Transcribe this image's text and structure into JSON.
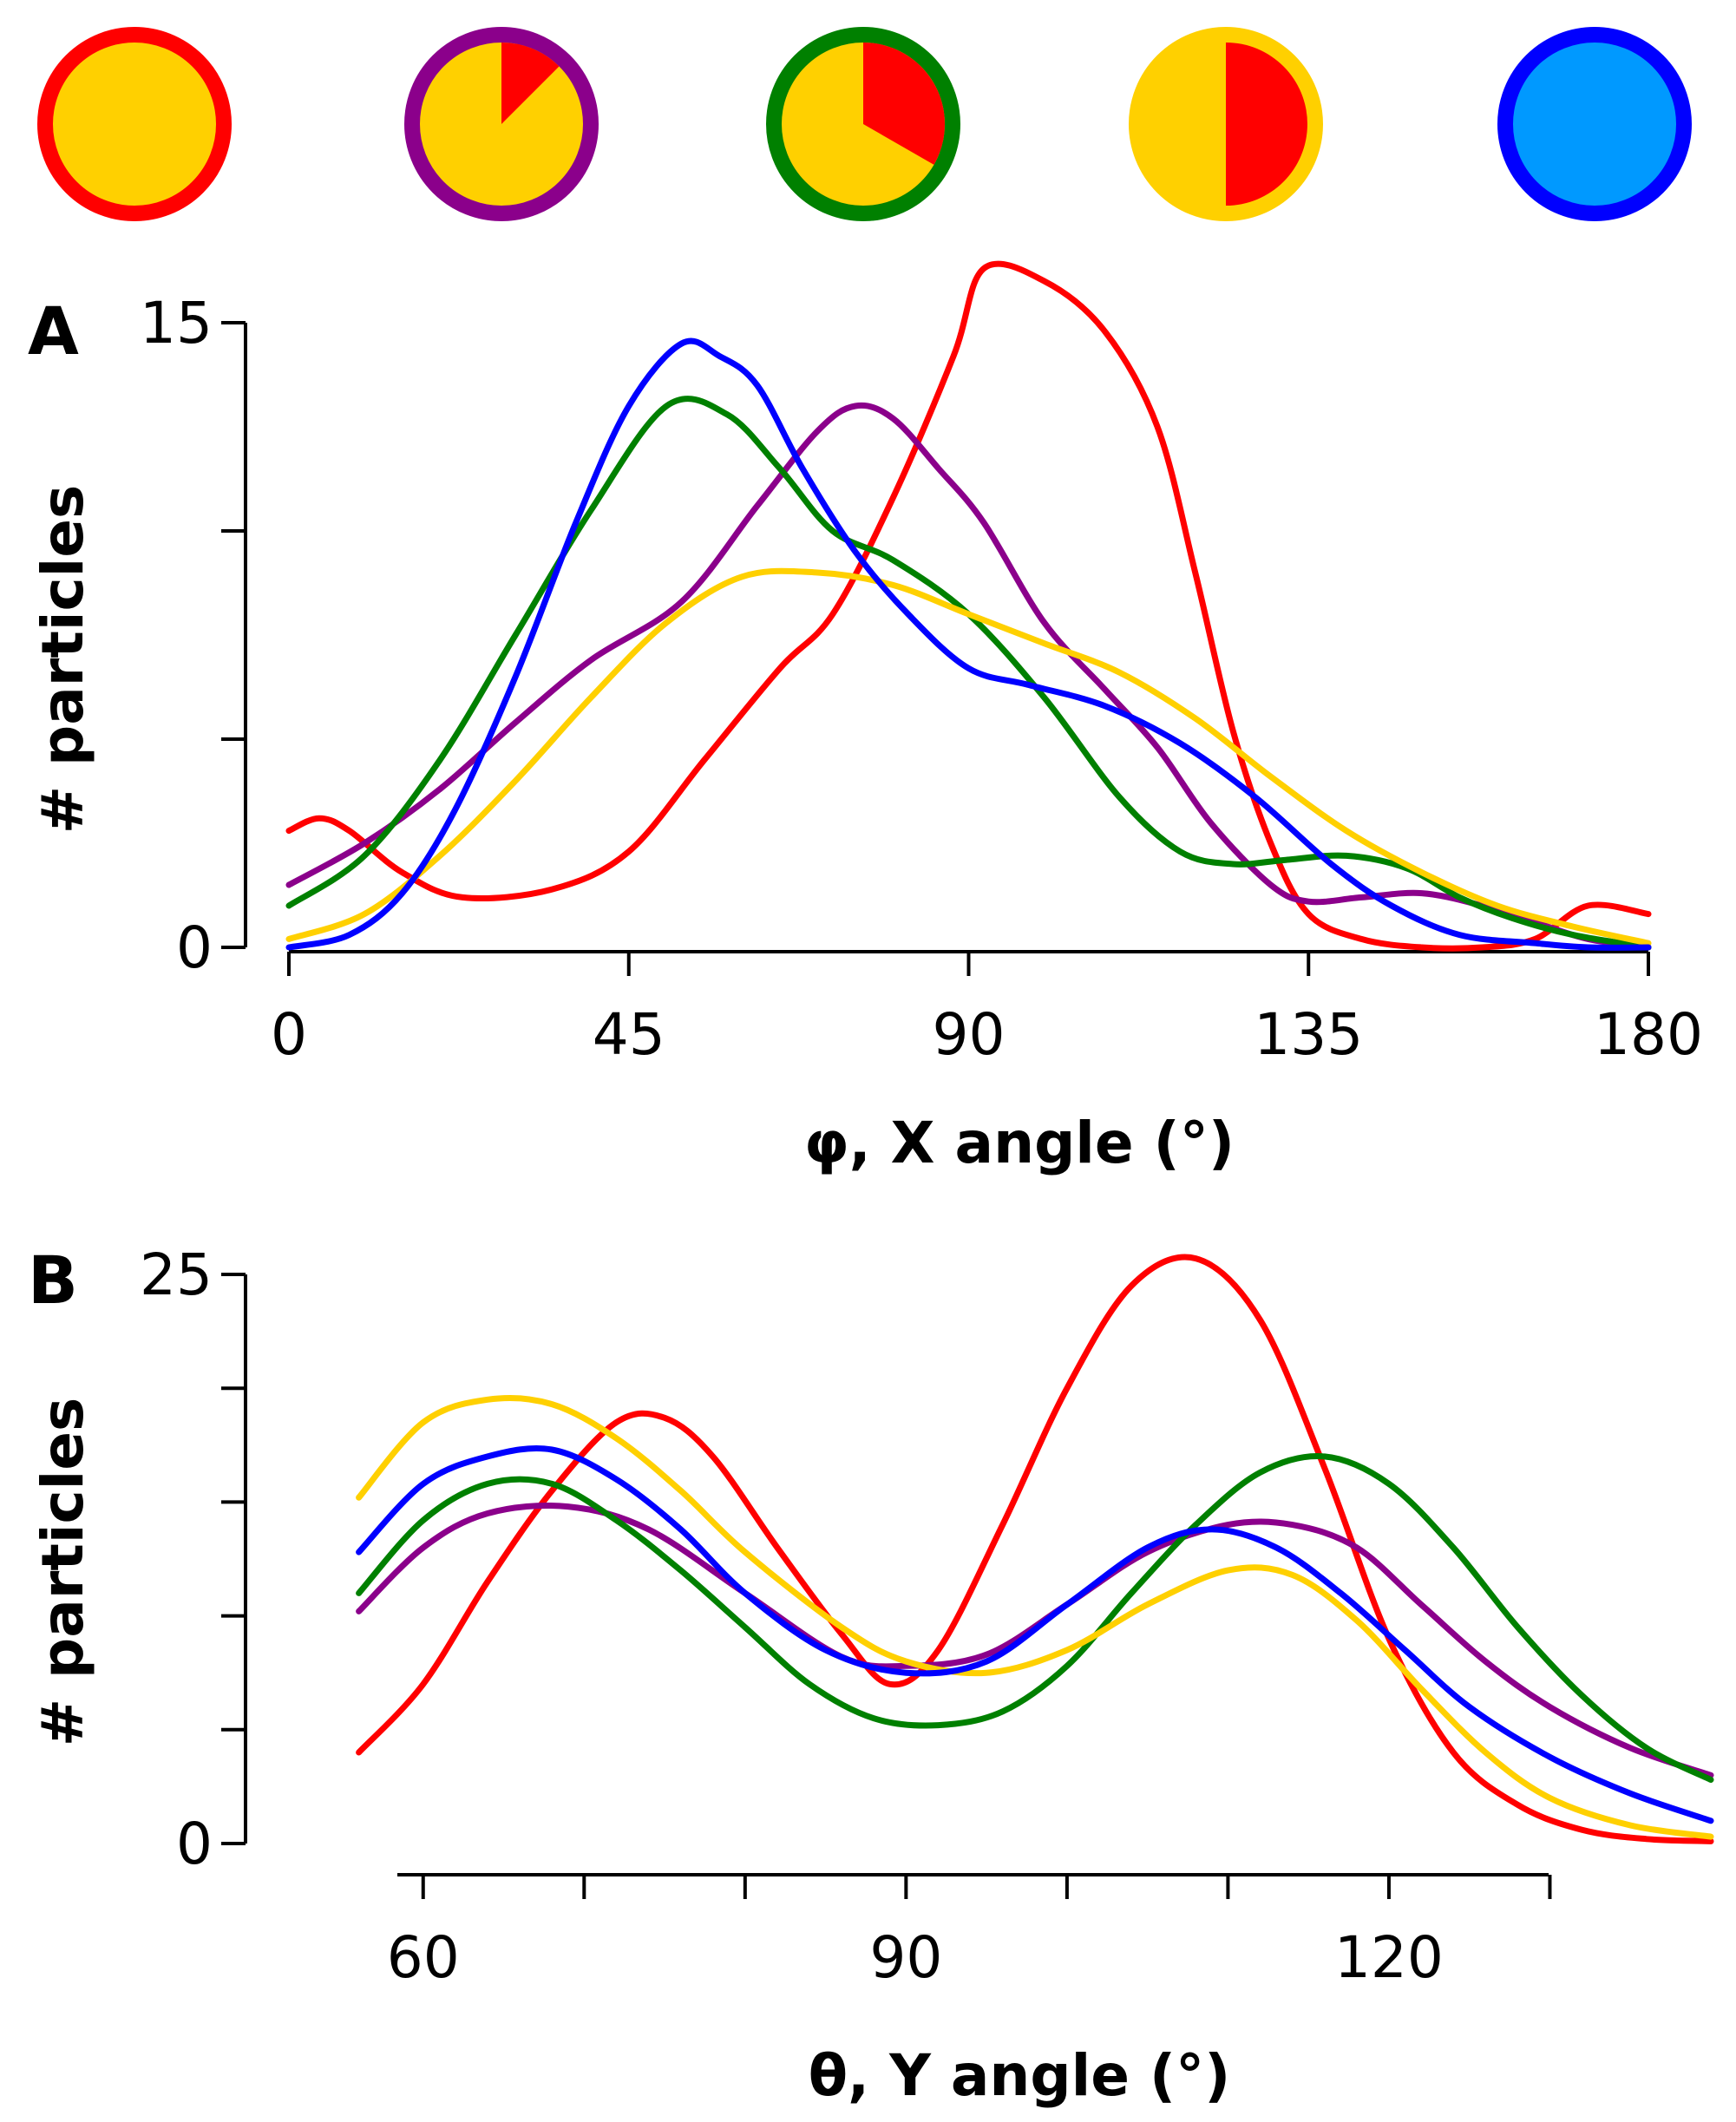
{
  "colors": {
    "red": "#ff0000",
    "purple": "#8b008b",
    "green": "#008000",
    "yellow": "#ffd000",
    "blue": "#0000ff",
    "fill_yellow": "#ffd000",
    "fill_red": "#ff0000",
    "fill_lightblue": "#0099ff"
  },
  "legend_icons": [
    {
      "ring": "red",
      "fill": "fill_yellow",
      "red_fraction": 0
    },
    {
      "ring": "purple",
      "fill": "fill_yellow",
      "red_fraction": 0.125
    },
    {
      "ring": "green",
      "fill": "fill_yellow",
      "red_fraction": 0.333
    },
    {
      "ring": "yellow",
      "fill": "fill_yellow",
      "red_fraction": 0.5
    },
    {
      "ring": "blue",
      "fill": "fill_lightblue",
      "red_fraction": 0
    }
  ],
  "chart_data": [
    {
      "panel": "A",
      "type": "line",
      "xlabel": "φ, X angle (°)",
      "ylabel": "# particles",
      "xlim": [
        0,
        180
      ],
      "ylim": [
        0,
        15
      ],
      "x_ticks": [
        0,
        45,
        90,
        135,
        180
      ],
      "y_ticks": [
        0,
        5,
        10,
        15
      ],
      "y_tick_labels": [
        "0",
        "",
        "",
        "15"
      ],
      "series": [
        {
          "color": "red",
          "x": [
            0,
            4,
            8,
            15,
            23,
            35,
            45,
            55,
            65,
            72,
            80,
            88,
            92,
            100,
            108,
            115,
            120,
            125,
            130,
            135,
            142,
            150,
            158,
            165,
            172,
            180
          ],
          "y": [
            2.8,
            3.1,
            2.8,
            1.8,
            1.2,
            1.4,
            2.3,
            4.5,
            6.7,
            8.0,
            10.8,
            14.2,
            16.3,
            16.0,
            14.8,
            12.5,
            9.0,
            5.2,
            2.5,
            0.8,
            0.2,
            0.0,
            0.0,
            0.2,
            1.0,
            0.8
          ]
        },
        {
          "color": "purple",
          "x": [
            0,
            10,
            20,
            30,
            40,
            52,
            62,
            70,
            75,
            80,
            86,
            92,
            100,
            108,
            115,
            122,
            130,
            135,
            142,
            150,
            158,
            165,
            172,
            180
          ],
          "y": [
            1.5,
            2.5,
            3.8,
            5.4,
            6.9,
            8.3,
            10.6,
            12.4,
            13.0,
            12.7,
            11.5,
            10.2,
            7.8,
            6.2,
            4.8,
            3.0,
            1.5,
            1.1,
            1.2,
            1.3,
            1.0,
            0.6,
            0.2,
            0.0
          ]
        },
        {
          "color": "green",
          "x": [
            0,
            10,
            20,
            30,
            40,
            50,
            58,
            65,
            72,
            80,
            90,
            100,
            110,
            118,
            125,
            132,
            140,
            148,
            155,
            162,
            170,
            180
          ],
          "y": [
            1.0,
            2.2,
            4.5,
            7.5,
            10.5,
            13.0,
            12.8,
            11.5,
            10.0,
            9.3,
            8.0,
            6.0,
            3.6,
            2.3,
            2.0,
            2.1,
            2.2,
            1.9,
            1.2,
            0.7,
            0.3,
            0.0
          ]
        },
        {
          "color": "yellow",
          "x": [
            0,
            10,
            20,
            30,
            40,
            50,
            60,
            70,
            80,
            90,
            100,
            110,
            120,
            130,
            140,
            150,
            160,
            170,
            180
          ],
          "y": [
            0.2,
            0.8,
            2.2,
            4.0,
            6.0,
            7.8,
            8.9,
            9.0,
            8.7,
            8.0,
            7.3,
            6.6,
            5.5,
            4.1,
            2.8,
            1.8,
            1.0,
            0.5,
            0.1
          ]
        },
        {
          "color": "blue",
          "x": [
            0,
            8,
            15,
            22,
            30,
            38,
            45,
            52,
            57,
            62,
            68,
            75,
            82,
            90,
            98,
            108,
            118,
            128,
            138,
            146,
            155,
            165,
            172,
            180
          ],
          "y": [
            0.0,
            0.3,
            1.3,
            3.3,
            6.5,
            10.2,
            13.0,
            14.5,
            14.2,
            13.5,
            11.5,
            9.5,
            8.0,
            6.7,
            6.3,
            5.8,
            4.9,
            3.6,
            2.0,
            1.0,
            0.3,
            0.1,
            0.0,
            0.0
          ]
        }
      ]
    },
    {
      "panel": "B",
      "type": "line",
      "xlabel": "θ, Y angle (°)",
      "ylabel": "# particles",
      "xlim": [
        55,
        140
      ],
      "ylim": [
        0,
        25
      ],
      "x_ticks": [
        60,
        90,
        120
      ],
      "x_minor_ticks": [
        60,
        70,
        80,
        90,
        100,
        110,
        120,
        130
      ],
      "y_ticks": [
        0,
        5,
        10,
        15,
        20,
        25
      ],
      "y_tick_labels": [
        "0",
        "",
        "",
        "",
        "",
        "25"
      ],
      "series": [
        {
          "color": "red",
          "x": [
            56,
            60,
            64,
            68,
            72,
            75,
            78,
            82,
            86,
            89,
            92,
            96,
            100,
            104,
            108,
            112,
            116,
            120,
            124,
            128,
            132,
            136,
            140
          ],
          "y": [
            4.0,
            7.0,
            11.5,
            15.5,
            18.5,
            18.7,
            17.0,
            13.0,
            9.2,
            7.0,
            8.5,
            14.0,
            20.0,
            24.5,
            25.7,
            23.0,
            16.5,
            9.0,
            4.0,
            1.7,
            0.6,
            0.2,
            0.1
          ]
        },
        {
          "color": "purple",
          "x": [
            56,
            60,
            64,
            69,
            74,
            80,
            86,
            90,
            95,
            100,
            105,
            110,
            114,
            118,
            122,
            126,
            130,
            135,
            140
          ],
          "y": [
            10.2,
            13.0,
            14.5,
            14.8,
            13.8,
            11.0,
            8.2,
            7.8,
            8.3,
            10.5,
            12.8,
            14.0,
            14.0,
            13.0,
            10.5,
            8.0,
            6.0,
            4.2,
            3.0
          ]
        },
        {
          "color": "green",
          "x": [
            56,
            60,
            64,
            68,
            72,
            76,
            80,
            84,
            88,
            92,
            96,
            100,
            104,
            108,
            112,
            116,
            120,
            124,
            128,
            132,
            136,
            140
          ],
          "y": [
            11.0,
            14.2,
            15.8,
            15.8,
            14.2,
            12.0,
            9.5,
            7.0,
            5.5,
            5.2,
            5.8,
            7.8,
            11.0,
            14.0,
            16.3,
            17.0,
            15.8,
            13.0,
            9.5,
            6.5,
            4.2,
            2.8
          ]
        },
        {
          "color": "yellow",
          "x": [
            56,
            60,
            64,
            68,
            72,
            76,
            80,
            86,
            90,
            95,
            100,
            105,
            110,
            114,
            118,
            122,
            126,
            130,
            135,
            140
          ],
          "y": [
            15.2,
            18.5,
            19.5,
            19.3,
            17.8,
            15.5,
            12.8,
            9.5,
            8.0,
            7.5,
            8.5,
            10.5,
            12.0,
            11.8,
            9.8,
            6.8,
            4.0,
            2.0,
            0.8,
            0.3
          ]
        },
        {
          "color": "blue",
          "x": [
            56,
            60,
            64,
            68,
            72,
            76,
            80,
            85,
            90,
            95,
            100,
            105,
            109,
            113,
            117,
            121,
            125,
            130,
            135,
            140
          ],
          "y": [
            12.8,
            15.8,
            17.0,
            17.3,
            16.0,
            13.8,
            11.0,
            8.5,
            7.5,
            8.0,
            10.5,
            13.0,
            13.8,
            13.0,
            11.0,
            8.5,
            6.0,
            3.8,
            2.2,
            1.0
          ]
        }
      ]
    }
  ]
}
